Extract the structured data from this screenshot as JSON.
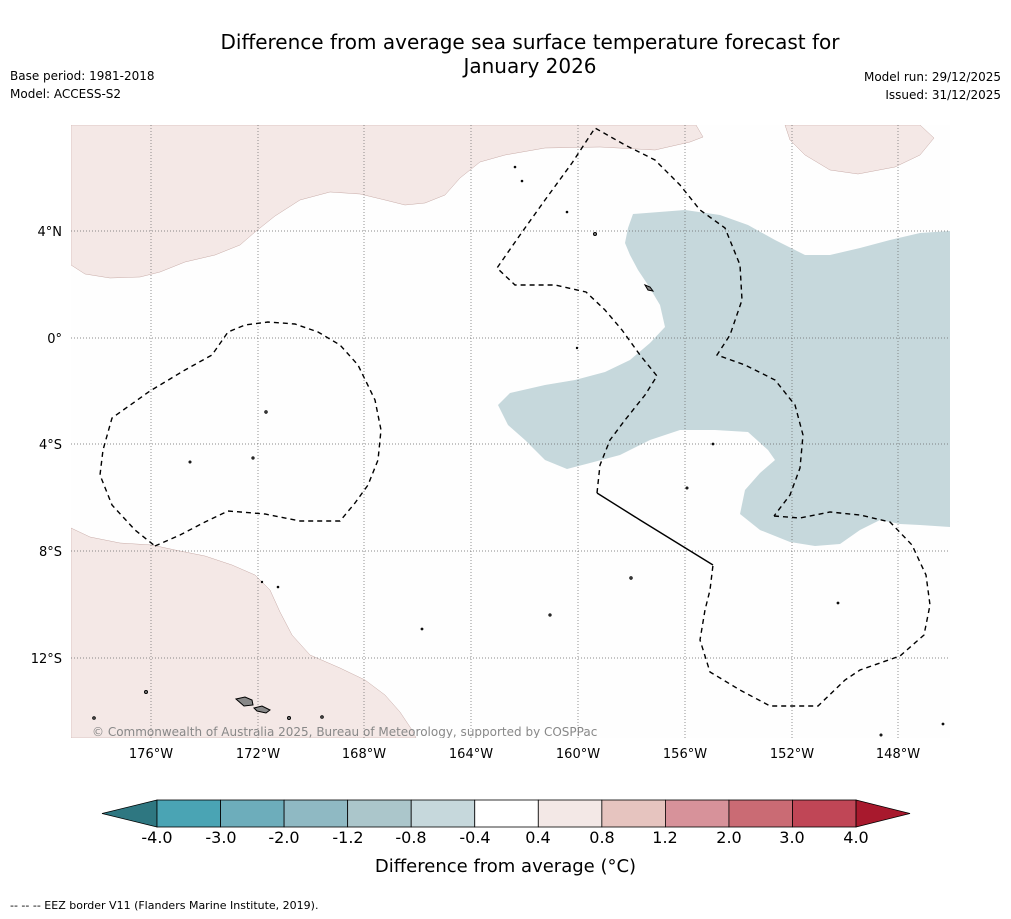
{
  "header": {
    "title_line1": "Difference from average sea surface temperature forecast for",
    "title_line2": "January 2026",
    "base_period": "Base period: 1981-2018",
    "model": "Model: ACCESS-S2",
    "model_run": "Model run: 29/12/2025",
    "issued": "Issued: 31/12/2025"
  },
  "map": {
    "copyright": "© Commonwealth of Australia 2025, Bureau of Meteorology, supported by COSPPac",
    "lat_labels": [
      "4°N",
      "0°",
      "4°S",
      "8°S",
      "12°S"
    ],
    "lon_labels": [
      "176°W",
      "172°W",
      "168°W",
      "164°W",
      "160°W",
      "156°W",
      "152°W",
      "148°W"
    ],
    "regions": [
      {
        "name": "north-west warm anomaly",
        "category": "0.4 to 0.8"
      },
      {
        "name": "north-east warm anomaly",
        "category": "0.4 to 0.8"
      },
      {
        "name": "south-west warm anomaly",
        "category": "0.4 to 0.8"
      },
      {
        "name": "central-east cool anomaly",
        "category": "-0.8 to -0.4"
      }
    ],
    "eez_border_label": "EEZ border V11"
  },
  "colorbar": {
    "ticks": [
      "-4.0",
      "-3.0",
      "-2.0",
      "-1.2",
      "-0.8",
      "-0.4",
      "0.4",
      "0.8",
      "1.2",
      "2.0",
      "3.0",
      "4.0"
    ],
    "colors": [
      "#2e7781",
      "#4aa4b4",
      "#6dadbb",
      "#8fb9c3",
      "#abc6cb",
      "#c6d8dc",
      "#ffffff",
      "#f3e8e6",
      "#e6c4bf",
      "#d7929a",
      "#ca6b74",
      "#c04656",
      "#a8192d"
    ],
    "label": "Difference from average (°C)"
  },
  "footnote": "--  --  -- EEZ border V11 (Flanders Marine Institute, 2019)."
}
